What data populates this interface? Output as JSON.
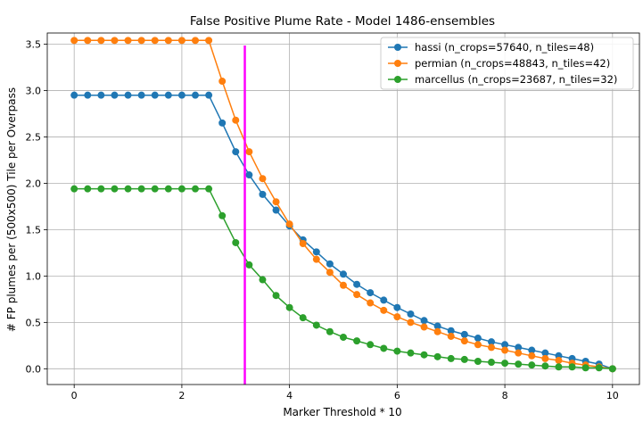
{
  "chart_data": {
    "type": "line",
    "title": "False Positive Plume Rate - Model 1486-ensembles",
    "xlabel": "Marker Threshold * 10",
    "ylabel": "# FP plumes per (500x500) Tile per Overpass",
    "xlim": [
      -0.5,
      10.5
    ],
    "ylim": [
      -0.17,
      3.62
    ],
    "xticks": [
      0,
      2,
      4,
      6,
      8,
      10
    ],
    "yticks": [
      0.0,
      0.5,
      1.0,
      1.5,
      2.0,
      2.5,
      3.0,
      3.5
    ],
    "ytick_labels": [
      "0.0",
      "0.5",
      "1.0",
      "1.5",
      "2.0",
      "2.5",
      "3.0",
      "3.5"
    ],
    "grid": true,
    "legend_position": "top-right",
    "vline": {
      "x": 3.17,
      "color": "#ff00ff"
    },
    "x": [
      0,
      0.25,
      0.5,
      0.75,
      1.0,
      1.25,
      1.5,
      1.75,
      2.0,
      2.25,
      2.5,
      2.75,
      3.0,
      3.25,
      3.5,
      3.75,
      4.0,
      4.25,
      4.5,
      4.75,
      5.0,
      5.25,
      5.5,
      5.75,
      6.0,
      6.25,
      6.5,
      6.75,
      7.0,
      7.25,
      7.5,
      7.75,
      8.0,
      8.25,
      8.5,
      8.75,
      9.0,
      9.25,
      9.5,
      9.75,
      10.0
    ],
    "series": [
      {
        "name": "hassi (n_crops=57640, n_tiles=48)",
        "color": "#1f77b4",
        "values": [
          2.95,
          2.95,
          2.95,
          2.95,
          2.95,
          2.95,
          2.95,
          2.95,
          2.95,
          2.95,
          2.95,
          2.65,
          2.34,
          2.09,
          1.88,
          1.71,
          1.54,
          1.39,
          1.26,
          1.13,
          1.02,
          0.91,
          0.82,
          0.74,
          0.66,
          0.59,
          0.52,
          0.46,
          0.41,
          0.37,
          0.33,
          0.29,
          0.26,
          0.23,
          0.2,
          0.17,
          0.14,
          0.11,
          0.08,
          0.05,
          0.0
        ]
      },
      {
        "name": "permian (n_crops=48843, n_tiles=42)",
        "color": "#ff7f0e",
        "values": [
          3.54,
          3.54,
          3.54,
          3.54,
          3.54,
          3.54,
          3.54,
          3.54,
          3.54,
          3.54,
          3.54,
          3.1,
          2.68,
          2.34,
          2.05,
          1.8,
          1.56,
          1.35,
          1.18,
          1.04,
          0.9,
          0.8,
          0.71,
          0.63,
          0.56,
          0.5,
          0.45,
          0.4,
          0.35,
          0.3,
          0.26,
          0.23,
          0.2,
          0.17,
          0.14,
          0.11,
          0.09,
          0.06,
          0.04,
          0.02,
          0.0
        ]
      },
      {
        "name": "marcellus (n_crops=23687, n_tiles=32)",
        "color": "#2ca02c",
        "values": [
          1.94,
          1.94,
          1.94,
          1.94,
          1.94,
          1.94,
          1.94,
          1.94,
          1.94,
          1.94,
          1.94,
          1.65,
          1.36,
          1.12,
          0.96,
          0.79,
          0.66,
          0.55,
          0.47,
          0.4,
          0.34,
          0.3,
          0.26,
          0.22,
          0.19,
          0.17,
          0.15,
          0.13,
          0.11,
          0.1,
          0.08,
          0.07,
          0.06,
          0.05,
          0.04,
          0.03,
          0.02,
          0.02,
          0.01,
          0.01,
          0.0
        ]
      }
    ]
  }
}
